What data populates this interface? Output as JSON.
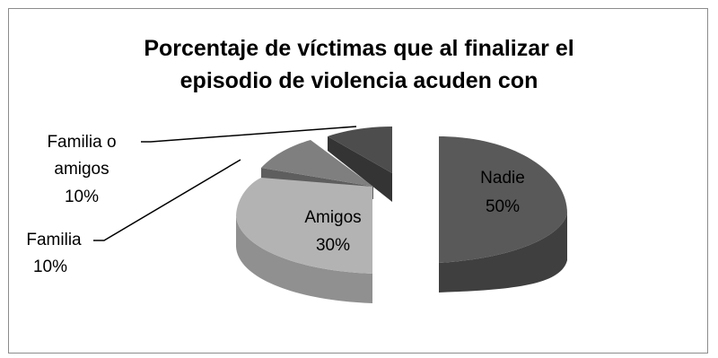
{
  "chart_data": {
    "type": "pie",
    "style": "exploded 3D pie, grayscale",
    "title_lines": [
      "Porcentaje de víctimas que al finalizar el",
      "episodio de violencia acuden con"
    ],
    "slices": [
      {
        "name": "Nadie",
        "percent": 50,
        "label": "50%",
        "color": "#595959"
      },
      {
        "name": "Amigos",
        "percent": 30,
        "label": "30%",
        "color": "#b3b3b3"
      },
      {
        "name": "Familia",
        "percent": 10,
        "label": "10%",
        "color": "#7f7f7f"
      },
      {
        "name_lines": [
          "Familia o",
          "amigos"
        ],
        "percent": 10,
        "label": "10%",
        "color": "#4d4d4d"
      }
    ],
    "legend": "none"
  }
}
